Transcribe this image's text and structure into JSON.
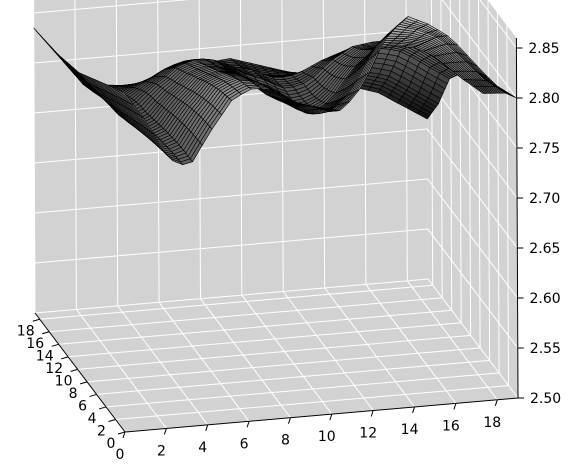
{
  "chart_data": {
    "type": "surface",
    "title": "",
    "xlabel": "",
    "ylabel": "",
    "zlabel": "",
    "x_ticks": [
      "0",
      "2",
      "4",
      "6",
      "8",
      "10",
      "12",
      "14",
      "16",
      "18"
    ],
    "y_ticks": [
      "0",
      "2",
      "4",
      "6",
      "8",
      "10",
      "12",
      "14",
      "16",
      "18"
    ],
    "z_ticks": [
      "2.50",
      "2.55",
      "2.60",
      "2.65",
      "2.70",
      "2.75",
      "2.80",
      "2.85"
    ],
    "xlim": [
      0,
      19
    ],
    "ylim": [
      0,
      19
    ],
    "zlim": [
      2.5,
      2.86
    ],
    "grid": true,
    "pane_color": "#d2d2d2",
    "edge_color": "#000000",
    "face_color_range": [
      "#0d0d0d",
      "#bdbdbd"
    ],
    "grid_size": [
      40,
      40
    ],
    "back_edge_z": [
      2.84,
      2.79,
      2.795,
      2.82,
      2.835,
      2.83,
      2.825,
      2.82,
      2.8
    ],
    "right_edge_z": [
      2.8,
      2.79,
      2.775,
      2.76,
      2.755,
      2.75,
      2.73,
      2.69,
      2.66
    ],
    "front_edge_z": [
      2.785,
      2.75,
      2.705,
      2.69,
      2.72,
      2.745,
      2.75,
      2.74,
      2.72,
      2.71,
      2.7,
      2.72,
      2.76,
      2.775,
      2.76,
      2.74,
      2.71,
      2.68,
      2.66
    ],
    "left_edge_z": [
      2.84,
      2.82,
      2.8,
      2.79,
      2.785
    ]
  }
}
